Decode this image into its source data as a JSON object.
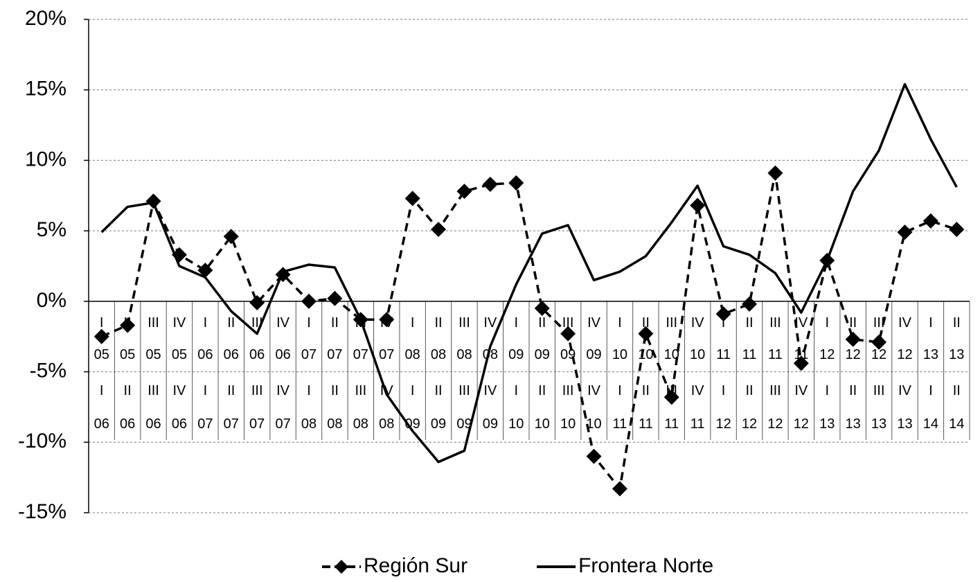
{
  "chart_data": {
    "type": "line",
    "categories": [
      [
        "I",
        "05",
        "I",
        "06"
      ],
      [
        "II",
        "05",
        "II",
        "06"
      ],
      [
        "III",
        "05",
        "III",
        "06"
      ],
      [
        "IV",
        "05",
        "IV",
        "06"
      ],
      [
        "I",
        "06",
        "I",
        "07"
      ],
      [
        "II",
        "06",
        "II",
        "07"
      ],
      [
        "III",
        "06",
        "III",
        "07"
      ],
      [
        "IV",
        "06",
        "IV",
        "07"
      ],
      [
        "I",
        "07",
        "I",
        "08"
      ],
      [
        "II",
        "07",
        "II",
        "08"
      ],
      [
        "III",
        "07",
        "III",
        "08"
      ],
      [
        "IV",
        "07",
        "IV",
        "08"
      ],
      [
        "I",
        "08",
        "I",
        "09"
      ],
      [
        "II",
        "08",
        "II",
        "09"
      ],
      [
        "III",
        "08",
        "III",
        "09"
      ],
      [
        "IV",
        "08",
        "IV",
        "09"
      ],
      [
        "I",
        "09",
        "I",
        "10"
      ],
      [
        "II",
        "09",
        "II",
        "10"
      ],
      [
        "III",
        "09",
        "III",
        "10"
      ],
      [
        "IV",
        "09",
        "IV",
        "10"
      ],
      [
        "I",
        "10",
        "I",
        "11"
      ],
      [
        "II",
        "10",
        "II",
        "11"
      ],
      [
        "III",
        "10",
        "III",
        "11"
      ],
      [
        "IV",
        "10",
        "IV",
        "11"
      ],
      [
        "I",
        "11",
        "I",
        "12"
      ],
      [
        "II",
        "11",
        "II",
        "12"
      ],
      [
        "III",
        "11",
        "III",
        "12"
      ],
      [
        "IV",
        "11",
        "IV",
        "12"
      ],
      [
        "I",
        "12",
        "I",
        "13"
      ],
      [
        "II",
        "12",
        "II",
        "13"
      ],
      [
        "III",
        "12",
        "III",
        "13"
      ],
      [
        "IV",
        "12",
        "IV",
        "13"
      ],
      [
        "I",
        "13",
        "I",
        "14"
      ],
      [
        "II",
        "13",
        "II",
        "14"
      ]
    ],
    "series": [
      {
        "name": "Región Sur",
        "color": "#000000",
        "dashed": true,
        "marker": "diamond",
        "values": [
          -2.5,
          -1.7,
          7.1,
          3.3,
          2.2,
          4.6,
          -0.1,
          1.9,
          0.0,
          0.2,
          -1.3,
          -1.3,
          7.3,
          5.1,
          7.8,
          8.3,
          8.4,
          -0.5,
          -2.3,
          -11.0,
          -13.3,
          -2.3,
          -6.8,
          6.8,
          -0.9,
          -0.2,
          9.1,
          -4.4,
          2.9,
          -2.7,
          -2.9,
          4.9,
          5.7,
          5.1
        ]
      },
      {
        "name": "Frontera Norte",
        "color": "#000000",
        "dashed": false,
        "marker": "none",
        "values": [
          4.9,
          6.7,
          7.0,
          2.5,
          1.7,
          -0.7,
          -2.3,
          2.1,
          2.6,
          2.4,
          -1.3,
          -6.6,
          -9.2,
          -11.4,
          -10.6,
          -3.2,
          1.2,
          4.8,
          5.4,
          1.5,
          2.1,
          3.2,
          5.6,
          8.2,
          3.9,
          3.3,
          2.0,
          -0.8,
          2.9,
          7.8,
          10.7,
          15.4,
          11.5,
          8.1
        ]
      }
    ],
    "ylim": [
      -15,
      20
    ],
    "yticks": [
      {
        "value": -15,
        "label": "-15%"
      },
      {
        "value": -10,
        "label": "-10%"
      },
      {
        "value": -5,
        "label": "-5%"
      },
      {
        "value": 0,
        "label": "0%"
      },
      {
        "value": 5,
        "label": "5%"
      },
      {
        "value": 10,
        "label": "10%"
      },
      {
        "value": 15,
        "label": "15%"
      },
      {
        "value": 20,
        "label": "20%"
      }
    ],
    "grid": true,
    "legend": "bottom"
  }
}
